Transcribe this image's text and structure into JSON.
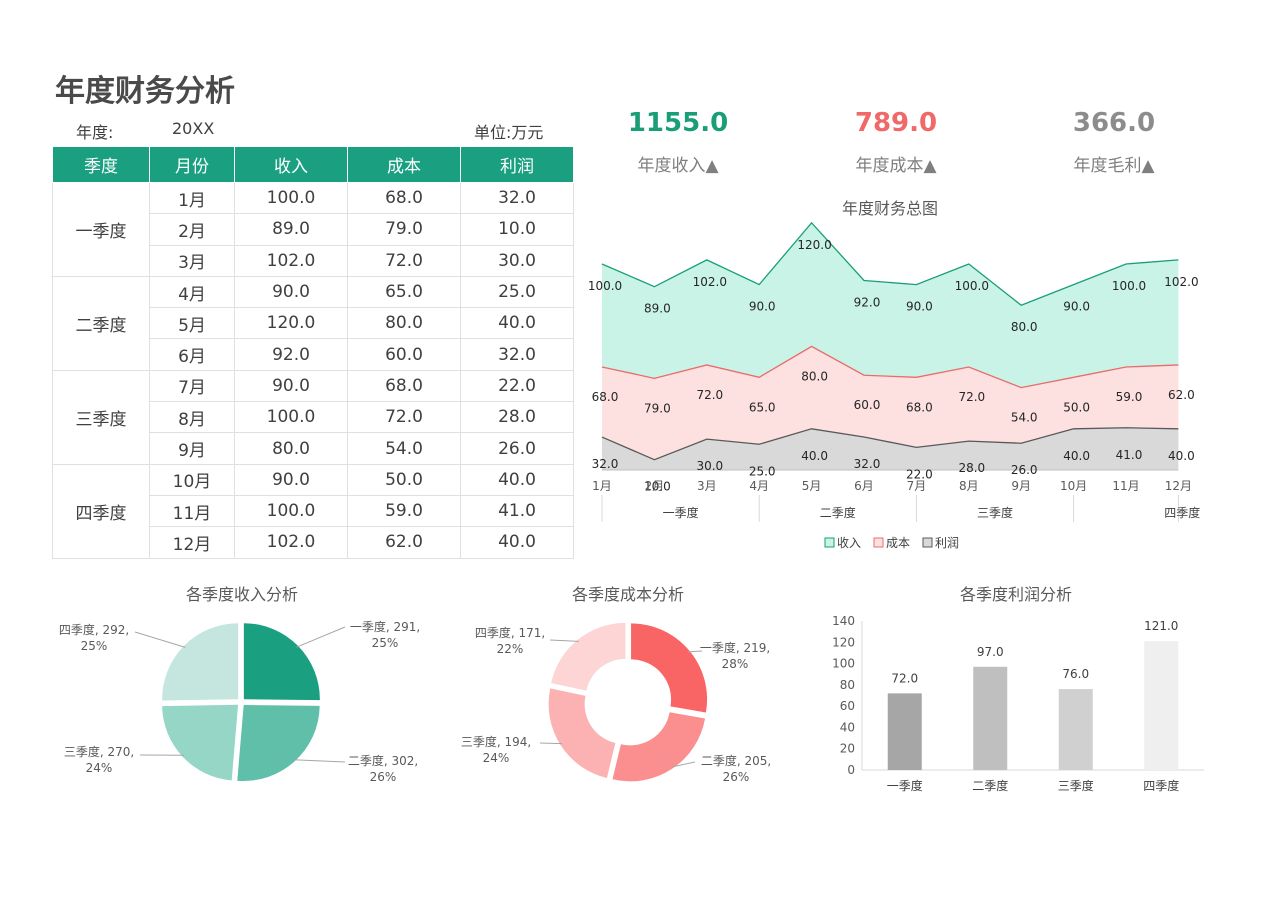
{
  "title": "年度财务分析",
  "meta": {
    "year_label": "年度:",
    "year_value": "20XX",
    "unit": "单位:万元"
  },
  "table": {
    "headers": [
      "季度",
      "月份",
      "收入",
      "成本",
      "利润"
    ],
    "quarters": [
      "一季度",
      "二季度",
      "三季度",
      "四季度"
    ],
    "rows": [
      [
        "1月",
        "100.0",
        "68.0",
        "32.0"
      ],
      [
        "2月",
        "89.0",
        "79.0",
        "10.0"
      ],
      [
        "3月",
        "102.0",
        "72.0",
        "30.0"
      ],
      [
        "4月",
        "90.0",
        "65.0",
        "25.0"
      ],
      [
        "5月",
        "120.0",
        "80.0",
        "40.0"
      ],
      [
        "6月",
        "92.0",
        "60.0",
        "32.0"
      ],
      [
        "7月",
        "90.0",
        "68.0",
        "22.0"
      ],
      [
        "8月",
        "100.0",
        "72.0",
        "28.0"
      ],
      [
        "9月",
        "80.0",
        "54.0",
        "26.0"
      ],
      [
        "10月",
        "90.0",
        "50.0",
        "40.0"
      ],
      [
        "11月",
        "100.0",
        "59.0",
        "41.0"
      ],
      [
        "12月",
        "102.0",
        "62.0",
        "40.0"
      ]
    ]
  },
  "kpis": [
    {
      "value": "1155.0",
      "label": "年度收入▲",
      "color": "#1a9e78"
    },
    {
      "value": "789.0",
      "label": "年度成本▲",
      "color": "#f06868"
    },
    {
      "value": "366.0",
      "label": "年度毛利▲",
      "color": "#8c8c8c"
    }
  ],
  "colors": {
    "header_green": "#1aa080",
    "revenue_fill": "#c9f3e6",
    "revenue_line": "#1a9e78",
    "cost_fill": "#fde0e0",
    "cost_line": "#e86c6c",
    "profit_fill": "#d9d9d9",
    "profit_line": "#595959"
  },
  "chart_data": [
    {
      "type": "area",
      "title": "年度财务总图",
      "categories": [
        "1月",
        "2月",
        "3月",
        "4月",
        "5月",
        "6月",
        "7月",
        "8月",
        "9月",
        "10月",
        "11月",
        "12月"
      ],
      "groups": [
        "一季度",
        "二季度",
        "三季度",
        "四季度"
      ],
      "stacked": true,
      "series": [
        {
          "name": "利润",
          "values": [
            32,
            10,
            30,
            25,
            40,
            32,
            22,
            28,
            26,
            40,
            41,
            40
          ]
        },
        {
          "name": "成本",
          "values": [
            68,
            79,
            72,
            65,
            80,
            60,
            68,
            72,
            54,
            50,
            59,
            62
          ]
        },
        {
          "name": "收入",
          "values": [
            100,
            89,
            102,
            90,
            120,
            92,
            90,
            100,
            80,
            90,
            100,
            102
          ]
        }
      ],
      "legend": [
        "收入",
        "成本",
        "利润"
      ],
      "legend_position": "bottom"
    },
    {
      "type": "pie",
      "title": "各季度收入分析",
      "labels": [
        "一季度",
        "二季度",
        "三季度",
        "四季度"
      ],
      "values": [
        291,
        302,
        270,
        292
      ],
      "percents": [
        "25%",
        "26%",
        "24%",
        "25%"
      ],
      "colors": [
        "#1aa080",
        "#5fbfa8",
        "#96d6c6",
        "#c4e6df"
      ]
    },
    {
      "type": "pie",
      "title": "各季度成本分析",
      "donut": true,
      "labels": [
        "一季度",
        "二季度",
        "三季度",
        "四季度"
      ],
      "values": [
        219,
        205,
        194,
        171
      ],
      "percents": [
        "28%",
        "26%",
        "24%",
        "22%"
      ],
      "colors": [
        "#f96464",
        "#fb8f8f",
        "#fcb2b2",
        "#fdd5d5"
      ]
    },
    {
      "type": "bar",
      "title": "各季度利润分析",
      "categories": [
        "一季度",
        "二季度",
        "三季度",
        "四季度"
      ],
      "values": [
        72.0,
        97.0,
        76.0,
        121.0
      ],
      "value_labels": [
        "72.0",
        "97.0",
        "76.0",
        "121.0"
      ],
      "ylim": [
        0,
        140
      ],
      "yticks": [
        "0",
        "20",
        "40",
        "60",
        "80",
        "100",
        "120",
        "140"
      ],
      "colors": [
        "#a6a6a6",
        "#bfbfbf",
        "#d0d0d0",
        "#efefef"
      ]
    }
  ]
}
